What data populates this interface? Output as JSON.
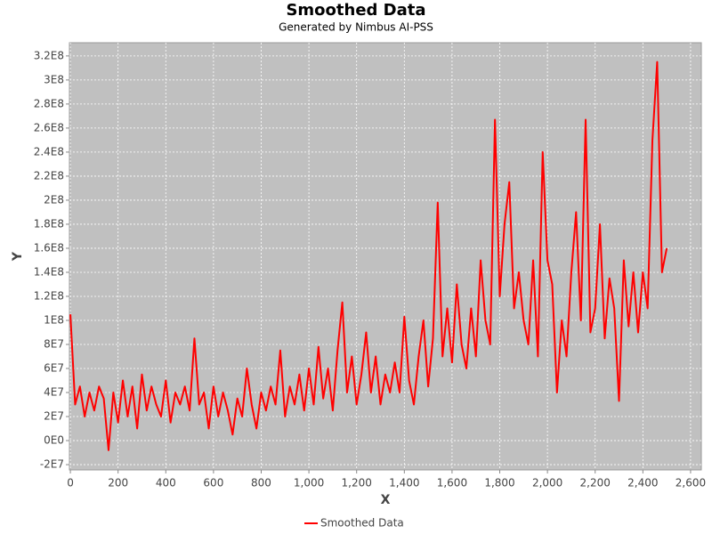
{
  "chart_data": {
    "type": "line",
    "title": "Smoothed Data",
    "subtitle": "Generated by Nimbus AI-PSS",
    "x_label": "X",
    "y_label": "Y",
    "x": [
      0,
      20,
      40,
      60,
      80,
      100,
      120,
      140,
      160,
      180,
      200,
      220,
      240,
      260,
      280,
      300,
      320,
      340,
      360,
      380,
      400,
      420,
      440,
      460,
      480,
      500,
      520,
      540,
      560,
      580,
      600,
      620,
      640,
      660,
      680,
      700,
      720,
      740,
      760,
      780,
      800,
      820,
      840,
      860,
      880,
      900,
      920,
      940,
      960,
      980,
      1000,
      1020,
      1040,
      1060,
      1080,
      1100,
      1120,
      1140,
      1160,
      1180,
      1200,
      1220,
      1240,
      1260,
      1280,
      1300,
      1320,
      1340,
      1360,
      1380,
      1400,
      1420,
      1440,
      1460,
      1480,
      1500,
      1520,
      1540,
      1560,
      1580,
      1600,
      1620,
      1640,
      1660,
      1680,
      1700,
      1720,
      1740,
      1760,
      1780,
      1800,
      1820,
      1840,
      1860,
      1880,
      1900,
      1920,
      1940,
      1960,
      1980,
      2000,
      2020,
      2040,
      2060,
      2080,
      2100,
      2120,
      2140,
      2160,
      2180,
      2200,
      2220,
      2240,
      2260,
      2280,
      2300,
      2320,
      2340,
      2360,
      2380,
      2400,
      2420,
      2440,
      2460,
      2480,
      2500
    ],
    "series": [
      {
        "name": "Smoothed Data",
        "color": "#ff0000",
        "values": [
          105000000.0,
          30000000.0,
          45000000.0,
          20000000.0,
          40000000.0,
          25000000.0,
          45000000.0,
          35000000.0,
          -8000000.0,
          40000000.0,
          15000000.0,
          50000000.0,
          20000000.0,
          45000000.0,
          10000000.0,
          55000000.0,
          25000000.0,
          45000000.0,
          30000000.0,
          20000000.0,
          50000000.0,
          15000000.0,
          40000000.0,
          30000000.0,
          45000000.0,
          25000000.0,
          85000000.0,
          30000000.0,
          40000000.0,
          10000000.0,
          45000000.0,
          20000000.0,
          40000000.0,
          25000000.0,
          5000000.0,
          35000000.0,
          20000000.0,
          60000000.0,
          30000000.0,
          10000000.0,
          40000000.0,
          25000000.0,
          45000000.0,
          30000000.0,
          75000000.0,
          20000000.0,
          45000000.0,
          30000000.0,
          55000000.0,
          25000000.0,
          60000000.0,
          30000000.0,
          78000000.0,
          35000000.0,
          60000000.0,
          25000000.0,
          75000000.0,
          115000000.0,
          40000000.0,
          70000000.0,
          30000000.0,
          55000000.0,
          90000000.0,
          40000000.0,
          70000000.0,
          30000000.0,
          55000000.0,
          40000000.0,
          65000000.0,
          40000000.0,
          103000000.0,
          50000000.0,
          30000000.0,
          70000000.0,
          100000000.0,
          45000000.0,
          85000000.0,
          198000000.0,
          70000000.0,
          110000000.0,
          65000000.0,
          130000000.0,
          80000000.0,
          60000000.0,
          110000000.0,
          70000000.0,
          150000000.0,
          100000000.0,
          80000000.0,
          267000000.0,
          120000000.0,
          180000000.0,
          215000000.0,
          110000000.0,
          140000000.0,
          100000000.0,
          80000000.0,
          150000000.0,
          70000000.0,
          240000000.0,
          150000000.0,
          130000000.0,
          40000000.0,
          100000000.0,
          70000000.0,
          140000000.0,
          190000000.0,
          100000000.0,
          267000000.0,
          90000000.0,
          110000000.0,
          180000000.0,
          85000000.0,
          135000000.0,
          110000000.0,
          33000000.0,
          150000000.0,
          95000000.0,
          140000000.0,
          90000000.0,
          140000000.0,
          110000000.0,
          250000000.0,
          315000000.0,
          140000000.0,
          160000000.0
        ]
      }
    ],
    "xlim": [
      -4,
      2645
    ],
    "xticks": [
      0,
      200,
      400,
      600,
      800,
      {
        "value": 1000,
        "label": "1,000"
      },
      {
        "value": 1200,
        "label": "1,200"
      },
      {
        "value": 1400,
        "label": "1,400"
      },
      {
        "value": 1600,
        "label": "1,600"
      },
      {
        "value": 1800,
        "label": "1,800"
      },
      {
        "value": 2000,
        "label": "2,000"
      },
      {
        "value": 2200,
        "label": "2,200"
      },
      {
        "value": 2400,
        "label": "2,400"
      },
      {
        "value": 2600,
        "label": "2,600"
      }
    ],
    "ylim": [
      -24400000,
      331000000
    ],
    "yticks": [
      {
        "value": -20000000,
        "label": "-2E7"
      },
      {
        "value": 0,
        "label": "0E0"
      },
      {
        "value": 20000000,
        "label": "2E7"
      },
      {
        "value": 40000000,
        "label": "4E7"
      },
      {
        "value": 60000000,
        "label": "6E7"
      },
      {
        "value": 80000000,
        "label": "8E7"
      },
      {
        "value": 100000000,
        "label": "1E8"
      },
      {
        "value": 120000000,
        "label": "1.2E8"
      },
      {
        "value": 140000000,
        "label": "1.4E8"
      },
      {
        "value": 160000000,
        "label": "1.6E8"
      },
      {
        "value": 180000000,
        "label": "1.8E8"
      },
      {
        "value": 200000000,
        "label": "2E8"
      },
      {
        "value": 220000000,
        "label": "2.2E8"
      },
      {
        "value": 240000000,
        "label": "2.4E8"
      },
      {
        "value": 260000000,
        "label": "2.6E8"
      },
      {
        "value": 280000000,
        "label": "2.8E8"
      },
      {
        "value": 300000000,
        "label": "3E8"
      },
      {
        "value": 320000000,
        "label": "3.2E8"
      }
    ],
    "grid": true
  }
}
